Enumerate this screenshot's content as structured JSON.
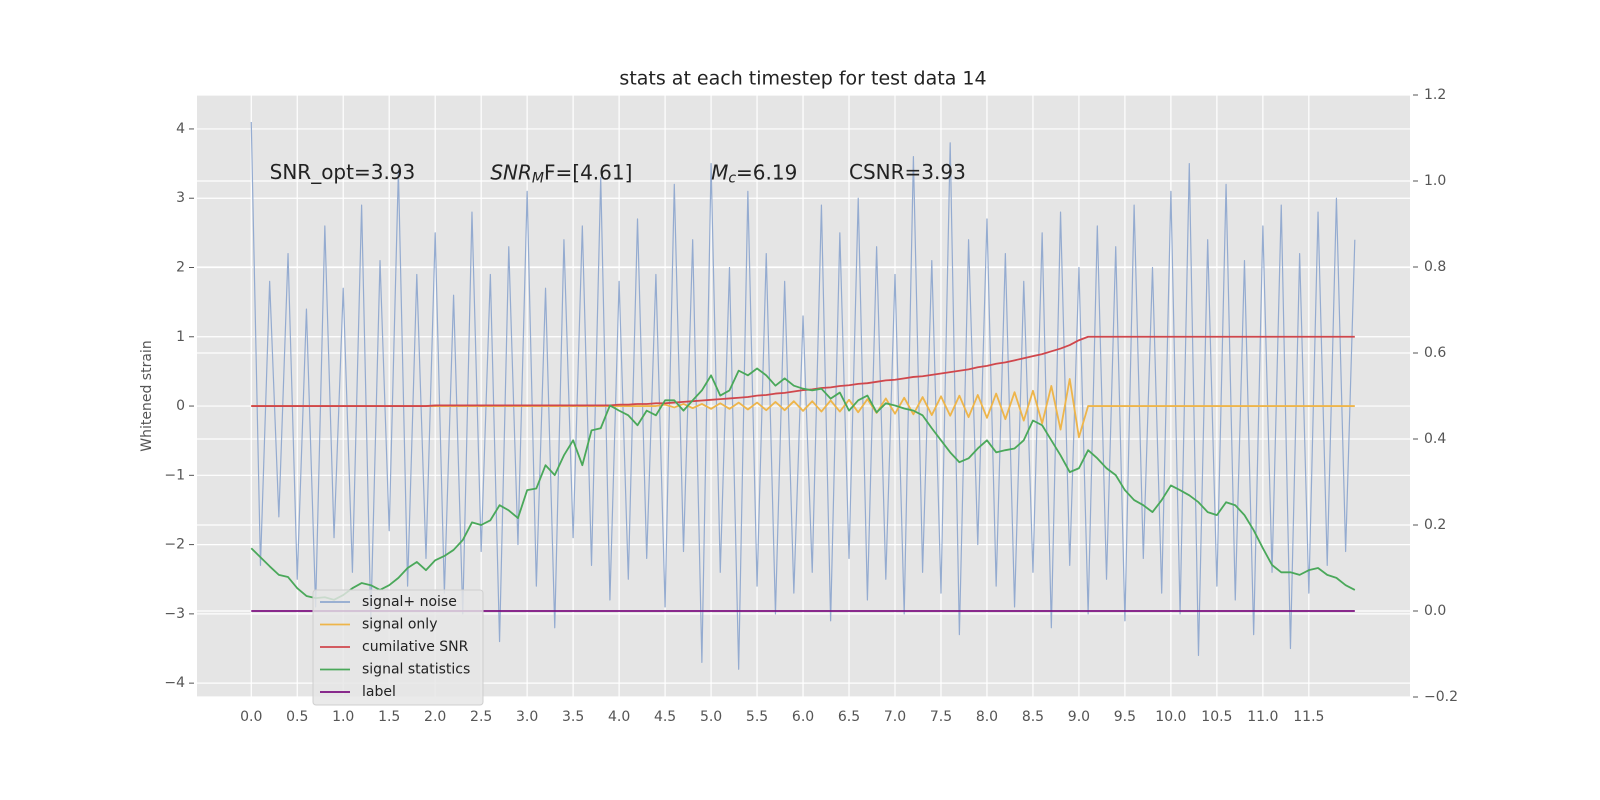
{
  "chart_data": {
    "type": "line",
    "title": "stats at each timestep for test data 14",
    "ylabel": "Whitened strain",
    "xlim": [
      -0.59,
      12.6
    ],
    "ylim": [
      -4.2,
      4.49
    ],
    "y2lim": [
      -0.2,
      1.2
    ],
    "xticks": [
      {
        "value": 0,
        "label": "0.0"
      },
      0.5,
      {
        "value": 1,
        "label": "1.0"
      },
      1.5,
      {
        "value": 2,
        "label": "2.0"
      },
      2.5,
      {
        "value": 3,
        "label": "3.0"
      },
      3.5,
      {
        "value": 4,
        "label": "4.0"
      },
      4.5,
      {
        "value": 5,
        "label": "5.0"
      },
      5.5,
      {
        "value": 6,
        "label": "6.0"
      },
      6.5,
      {
        "value": 7,
        "label": "7.0"
      },
      7.5,
      {
        "value": 8,
        "label": "8.0"
      },
      8.5,
      {
        "value": 9,
        "label": "9.0"
      },
      9.5,
      {
        "value": 10,
        "label": "10.0"
      },
      10.5,
      {
        "value": 11,
        "label": "11.0"
      },
      11.5
    ],
    "yticks": [
      {
        "value": -4,
        "label": "−4"
      },
      {
        "value": -3,
        "label": "−3"
      },
      {
        "value": -2,
        "label": "−2"
      },
      {
        "value": -1,
        "label": "−1"
      },
      0,
      1,
      2,
      3,
      4
    ],
    "y2ticks": [
      {
        "value": -0.2,
        "label": "−0.2"
      },
      {
        "value": 0,
        "label": "0.0"
      },
      0.2,
      0.4,
      0.6,
      0.8,
      {
        "value": 1,
        "label": "1.0"
      },
      1.2
    ],
    "grid": true,
    "legend": "lower left",
    "annotations": [
      {
        "text": "SNR_opt=3.93",
        "x": 0.2,
        "y": 3.36
      },
      {
        "main": "SNR",
        "sub": "M",
        "after": "F=[4.61]",
        "x": 2.6,
        "y": 3.36
      },
      {
        "main": "M",
        "sub": "c",
        "after": "=6.19",
        "x": 5.0,
        "y": 3.36
      },
      {
        "text": "CSNR=3.93",
        "x": 6.5,
        "y": 3.36
      }
    ],
    "x": [
      0,
      0.1,
      0.2,
      0.3,
      0.4,
      0.5,
      0.6,
      0.7,
      0.8,
      0.9,
      1,
      1.1,
      1.2,
      1.3,
      1.4,
      1.5,
      1.6,
      1.7,
      1.8,
      1.9,
      2,
      2.1,
      2.2,
      2.3,
      2.4,
      2.5,
      2.6,
      2.7,
      2.8,
      2.9,
      3,
      3.1,
      3.2,
      3.3,
      3.4,
      3.5,
      3.6,
      3.7,
      3.8,
      3.9,
      4,
      4.1,
      4.2,
      4.3,
      4.4,
      4.5,
      4.6,
      4.7,
      4.8,
      4.9,
      5,
      5.1,
      5.2,
      5.3,
      5.4,
      5.5,
      5.6,
      5.7,
      5.8,
      5.9,
      6,
      6.1,
      6.2,
      6.3,
      6.4,
      6.5,
      6.6,
      6.7,
      6.8,
      6.9,
      7,
      7.1,
      7.2,
      7.3,
      7.4,
      7.5,
      7.6,
      7.7,
      7.8,
      7.9,
      8,
      8.1,
      8.2,
      8.3,
      8.4,
      8.5,
      8.6,
      8.7,
      8.8,
      8.9,
      9,
      9.1,
      9.2,
      9.3,
      9.4,
      9.5,
      9.6,
      9.7,
      9.8,
      9.9,
      10,
      10.1,
      10.2,
      10.3,
      10.4,
      10.5,
      10.6,
      10.7,
      10.8,
      10.9,
      11,
      11.1,
      11.2,
      11.3,
      11.4,
      11.5,
      11.6,
      11.7,
      11.8,
      11.9,
      12
    ],
    "series": [
      {
        "name": "signal+ noise",
        "color": "#8fa8cf",
        "axis": "y",
        "values": [
          4.1,
          -2.3,
          1.8,
          -1.6,
          2.2,
          -2.5,
          1.4,
          -2.9,
          2.6,
          -1.9,
          1.7,
          -2.4,
          2.9,
          -3.1,
          2.1,
          -1.8,
          3.4,
          -2.6,
          1.9,
          -2.2,
          2.5,
          -2.7,
          1.6,
          -3.0,
          2.8,
          -2.1,
          1.9,
          -3.4,
          2.3,
          -2.0,
          3.1,
          -2.6,
          1.7,
          -3.2,
          2.4,
          -1.9,
          2.6,
          -2.3,
          3.3,
          -2.8,
          1.8,
          -2.5,
          2.7,
          -2.2,
          1.9,
          -2.9,
          3.2,
          -2.1,
          2.4,
          -3.7,
          3.5,
          -2.4,
          2.0,
          -3.8,
          3.1,
          -2.6,
          2.2,
          -3.0,
          1.8,
          -2.7,
          1.3,
          -2.4,
          2.9,
          -3.1,
          2.5,
          -2.2,
          3.0,
          -2.8,
          2.3,
          -2.5,
          1.9,
          -3.0,
          3.6,
          -2.4,
          2.1,
          -2.7,
          3.8,
          -3.3,
          2.4,
          -2.0,
          2.7,
          -2.6,
          2.2,
          -2.9,
          1.8,
          -2.4,
          2.5,
          -3.2,
          2.8,
          -2.3,
          2.0,
          -3.0,
          2.6,
          -2.5,
          2.3,
          -3.1,
          2.9,
          -2.2,
          2.0,
          -2.7,
          3.1,
          -3.0,
          3.5,
          -3.6,
          2.4,
          -2.6,
          3.2,
          -2.8,
          2.1,
          -3.3,
          2.6,
          -2.4,
          2.9,
          -3.5,
          2.2,
          -2.7,
          2.8,
          -2.3,
          3.0,
          -2.1,
          2.4
        ]
      },
      {
        "name": "signal only",
        "color": "#eeb54a",
        "axis": "y",
        "values": [
          0,
          0,
          0,
          0,
          0,
          0,
          0,
          0,
          0,
          0,
          0,
          0,
          0,
          0,
          0,
          0,
          0,
          0,
          0,
          0,
          0,
          0,
          0,
          0,
          0,
          0,
          0,
          0,
          0,
          0,
          0,
          0,
          0,
          0,
          0,
          0,
          0,
          0,
          0,
          0,
          0,
          0,
          0,
          0,
          0,
          0.02,
          -0.02,
          0.03,
          -0.03,
          0.03,
          -0.04,
          0.04,
          -0.04,
          0.05,
          -0.05,
          0.05,
          -0.06,
          0.06,
          -0.06,
          0.07,
          -0.07,
          0.07,
          -0.08,
          0.08,
          -0.08,
          0.09,
          -0.09,
          0.1,
          -0.1,
          0.11,
          -0.11,
          0.12,
          -0.12,
          0.13,
          -0.13,
          0.14,
          -0.14,
          0.15,
          -0.16,
          0.16,
          -0.17,
          0.18,
          -0.19,
          0.2,
          -0.21,
          0.22,
          -0.25,
          0.29,
          -0.34,
          0.39,
          -0.45,
          0,
          0,
          0,
          0,
          0,
          0,
          0,
          0,
          0,
          0,
          0,
          0,
          0,
          0,
          0,
          0,
          0,
          0,
          0,
          0,
          0,
          0,
          0,
          0,
          0,
          0,
          0,
          0,
          0,
          0
        ]
      },
      {
        "name": "cumilative SNR",
        "color": "#d0474c",
        "axis": "y",
        "values": [
          0,
          0,
          0,
          0,
          0,
          0,
          0,
          0,
          0,
          0,
          0,
          0,
          0,
          0,
          0,
          0,
          0,
          0,
          0,
          0,
          0.01,
          0.01,
          0.01,
          0.01,
          0.01,
          0.01,
          0.01,
          0.01,
          0.01,
          0.01,
          0.01,
          0.01,
          0.01,
          0.01,
          0.01,
          0.01,
          0.01,
          0.01,
          0.01,
          0.01,
          0.02,
          0.02,
          0.03,
          0.03,
          0.04,
          0.04,
          0.05,
          0.06,
          0.07,
          0.08,
          0.09,
          0.1,
          0.11,
          0.12,
          0.13,
          0.15,
          0.16,
          0.18,
          0.19,
          0.21,
          0.23,
          0.24,
          0.26,
          0.27,
          0.29,
          0.3,
          0.32,
          0.33,
          0.35,
          0.37,
          0.38,
          0.4,
          0.42,
          0.43,
          0.45,
          0.47,
          0.49,
          0.51,
          0.53,
          0.56,
          0.58,
          0.61,
          0.63,
          0.66,
          0.69,
          0.72,
          0.75,
          0.79,
          0.83,
          0.88,
          0.95,
          1,
          1,
          1,
          1,
          1,
          1,
          1,
          1,
          1,
          1,
          1,
          1,
          1,
          1,
          1,
          1,
          1,
          1,
          1,
          1,
          1,
          1,
          1,
          1,
          1,
          1,
          1,
          1,
          1,
          1
        ]
      },
      {
        "name": "signal statistics",
        "color": "#4aa85a",
        "axis": "y2",
        "values": [
          0.146,
          0.125,
          0.104,
          0.084,
          0.079,
          0.053,
          0.035,
          0.03,
          0.032,
          0.026,
          0.037,
          0.053,
          0.065,
          0.06,
          0.049,
          0.06,
          0.077,
          0.1,
          0.114,
          0.095,
          0.118,
          0.128,
          0.142,
          0.165,
          0.206,
          0.2,
          0.211,
          0.246,
          0.234,
          0.216,
          0.281,
          0.285,
          0.339,
          0.316,
          0.362,
          0.397,
          0.339,
          0.42,
          0.425,
          0.478,
          0.466,
          0.455,
          0.432,
          0.466,
          0.455,
          0.49,
          0.49,
          0.466,
          0.49,
          0.513,
          0.548,
          0.501,
          0.513,
          0.559,
          0.548,
          0.564,
          0.548,
          0.524,
          0.541,
          0.524,
          0.517,
          0.513,
          0.517,
          0.494,
          0.508,
          0.466,
          0.49,
          0.501,
          0.462,
          0.483,
          0.478,
          0.471,
          0.466,
          0.455,
          0.425,
          0.397,
          0.369,
          0.346,
          0.355,
          0.378,
          0.397,
          0.369,
          0.374,
          0.378,
          0.397,
          0.443,
          0.432,
          0.397,
          0.362,
          0.323,
          0.332,
          0.374,
          0.355,
          0.332,
          0.316,
          0.281,
          0.258,
          0.246,
          0.23,
          0.258,
          0.292,
          0.281,
          0.269,
          0.253,
          0.23,
          0.223,
          0.253,
          0.246,
          0.223,
          0.188,
          0.146,
          0.107,
          0.09,
          0.09,
          0.084,
          0.095,
          0.1,
          0.084,
          0.077,
          0.06,
          0.049
        ]
      },
      {
        "name": "label",
        "color": "#7b0f7f",
        "axis": "y2",
        "values": [
          0,
          0,
          0,
          0,
          0,
          0,
          0,
          0,
          0,
          0,
          0,
          0,
          0,
          0,
          0,
          0,
          0,
          0,
          0,
          0,
          0,
          0,
          0,
          0,
          0,
          0,
          0,
          0,
          0,
          0,
          0,
          0,
          0,
          0,
          0,
          0,
          0,
          0,
          0,
          0,
          0,
          0,
          0,
          0,
          0,
          0,
          0,
          0,
          0,
          0,
          0,
          0,
          0,
          0,
          0,
          0,
          0,
          0,
          0,
          0,
          0,
          0,
          0,
          0,
          0,
          0,
          0,
          0,
          0,
          0,
          0,
          0,
          0,
          0,
          0,
          0,
          0,
          0,
          0,
          0,
          0,
          0,
          0,
          0,
          0,
          0,
          0,
          0,
          0,
          0,
          0,
          0,
          0,
          0,
          0,
          0,
          0,
          0,
          0,
          0,
          0,
          0,
          0,
          0,
          0,
          0,
          0,
          0,
          0,
          0,
          0,
          0,
          0,
          0,
          0,
          0,
          0,
          0,
          0,
          0,
          0
        ]
      }
    ]
  }
}
